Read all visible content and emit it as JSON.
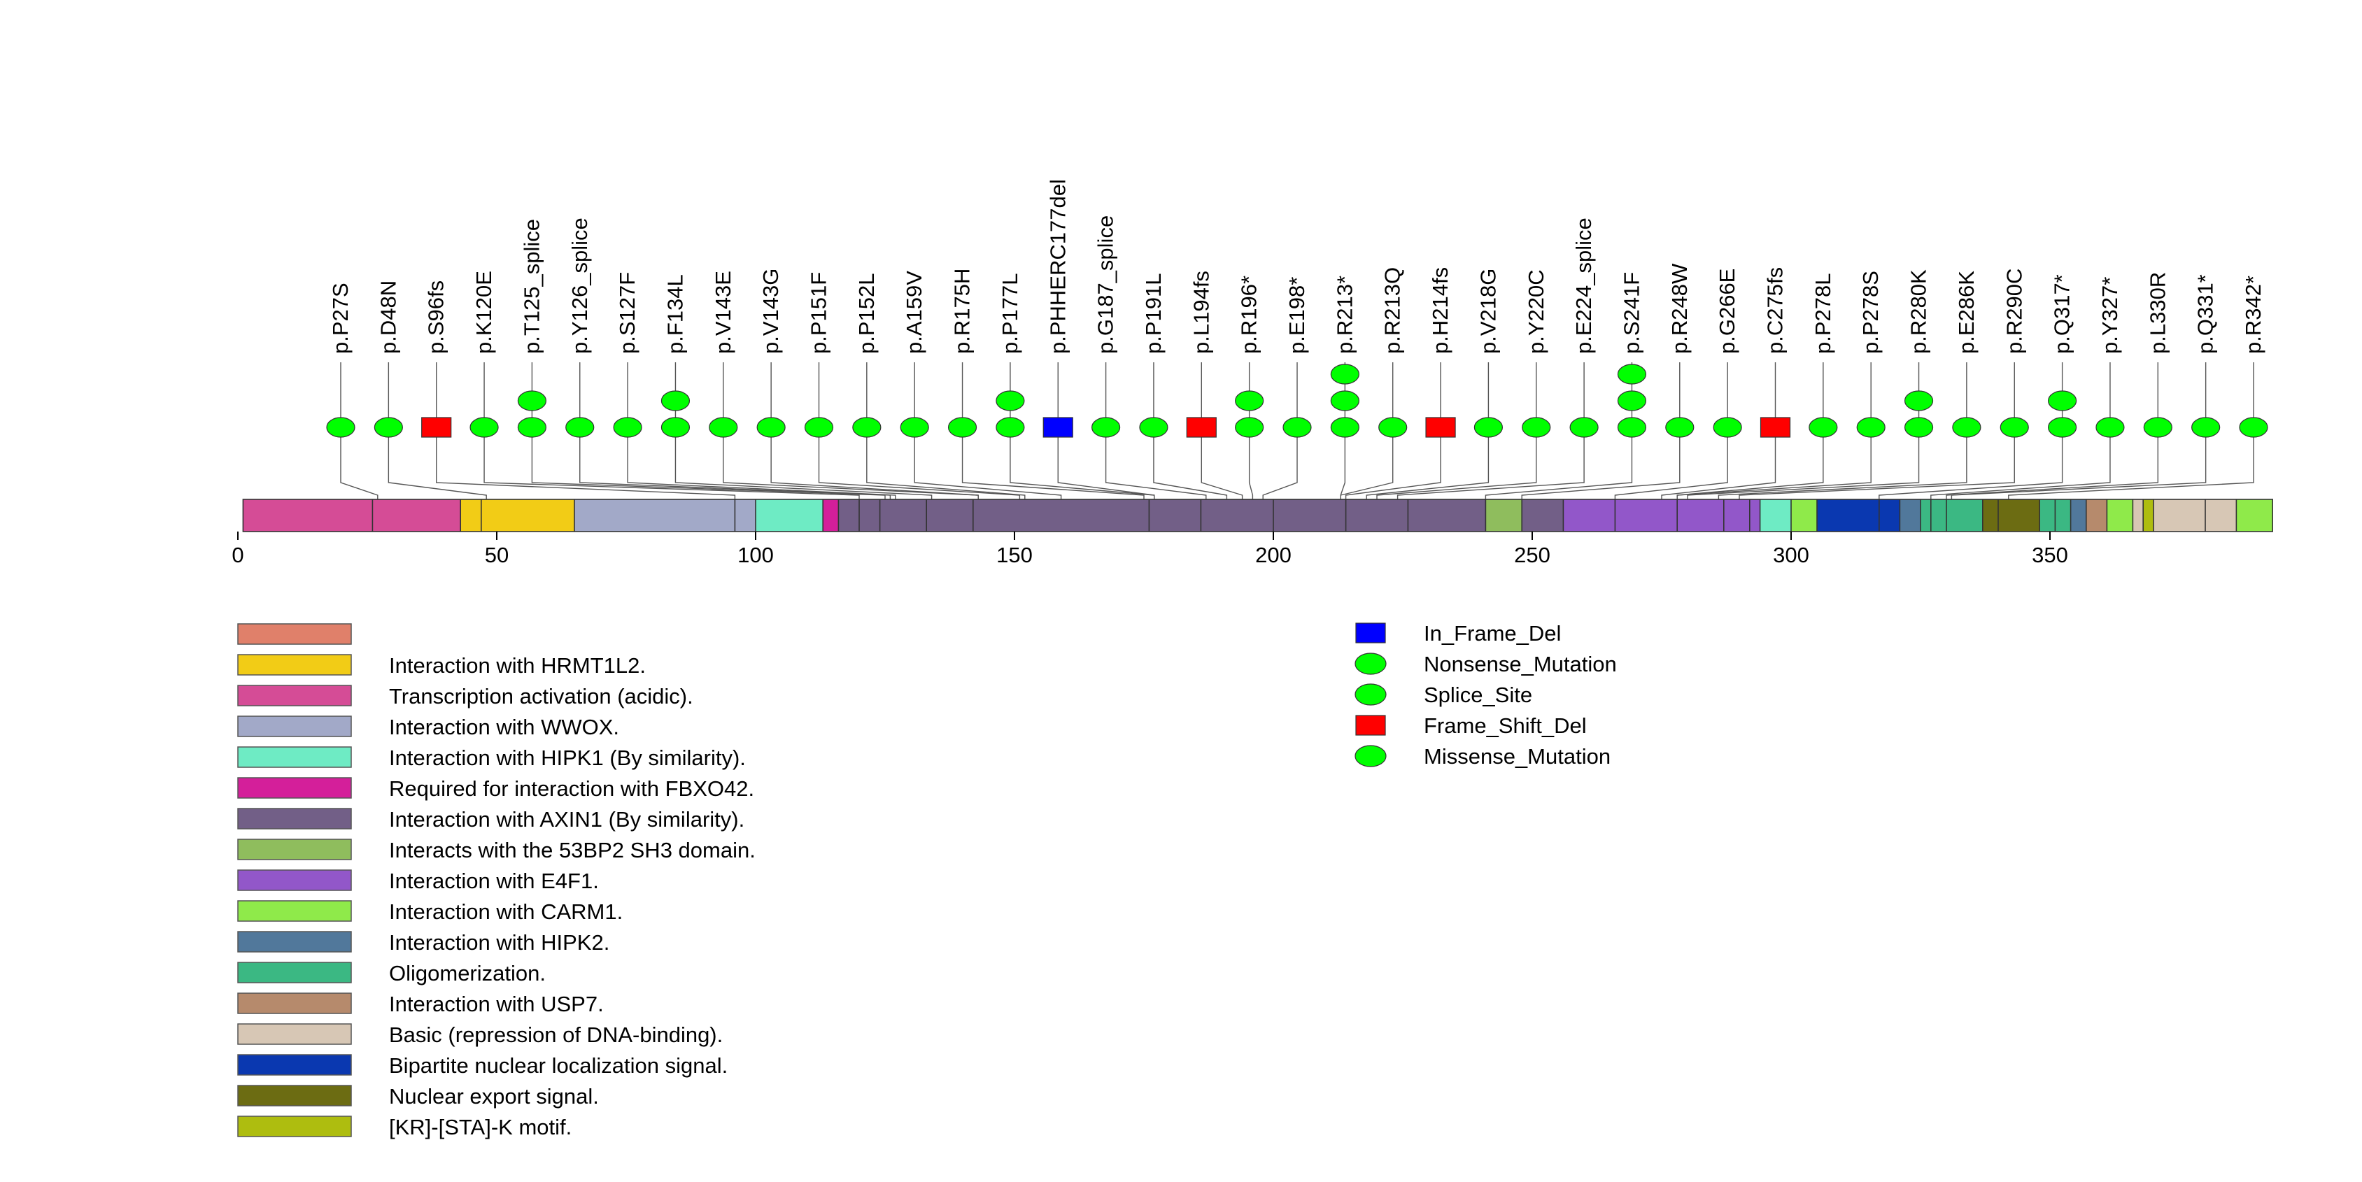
{
  "chart_data": {
    "type": "lollipop",
    "axis": {
      "min": 0,
      "max": 392,
      "ticks": [
        0,
        50,
        100,
        150,
        200,
        250,
        300,
        350
      ]
    },
    "domains": [
      {
        "start": 1,
        "end": 26,
        "color": "#d54c96",
        "feature": "Transcription activation (acidic)."
      },
      {
        "start": 26,
        "end": 43,
        "color": "#d54c96",
        "feature": "Transcription activation (acidic)."
      },
      {
        "start": 43,
        "end": 47,
        "color": "#f2cc16",
        "feature": "Interaction with HRMT1L2."
      },
      {
        "start": 47,
        "end": 65,
        "color": "#f2cc16",
        "feature": "Interaction with HRMT1L2."
      },
      {
        "start": 65,
        "end": 96,
        "color": "#a2a9c8",
        "feature": "Interaction with WWOX."
      },
      {
        "start": 96,
        "end": 100,
        "color": "#a2a9c8",
        "feature": "Interaction with WWOX."
      },
      {
        "start": 100,
        "end": 113,
        "color": "#6eebc4",
        "feature": "Interaction with HIPK1 (By similarity)."
      },
      {
        "start": 113,
        "end": 116,
        "color": "#d41f9a",
        "feature": "Required for interaction with FBXO42."
      },
      {
        "start": 116,
        "end": 120,
        "color": "#725f87",
        "feature": "Interaction with AXIN1 (By similarity)."
      },
      {
        "start": 120,
        "end": 124,
        "color": "#725f87",
        "feature": "Interaction with AXIN1 (By similarity)."
      },
      {
        "start": 124,
        "end": 133,
        "color": "#725f87",
        "feature": "Interaction with AXIN1 (By similarity)."
      },
      {
        "start": 133,
        "end": 142,
        "color": "#725f87",
        "feature": "Interaction with AXIN1 (By similarity)."
      },
      {
        "start": 142,
        "end": 176,
        "color": "#725f87",
        "feature": "Interaction with AXIN1 (By similarity)."
      },
      {
        "start": 176,
        "end": 186,
        "color": "#725f87",
        "feature": "Interaction with AXIN1 (By similarity)."
      },
      {
        "start": 186,
        "end": 200,
        "color": "#725f87",
        "feature": "Interaction with AXIN1 (By similarity)."
      },
      {
        "start": 200,
        "end": 214,
        "color": "#725f87",
        "feature": "Interaction with AXIN1 (By similarity)."
      },
      {
        "start": 214,
        "end": 226,
        "color": "#725f87",
        "feature": "Interaction with AXIN1 (By similarity)."
      },
      {
        "start": 226,
        "end": 241,
        "color": "#725f87",
        "feature": "Interaction with AXIN1 (By similarity)."
      },
      {
        "start": 241,
        "end": 248,
        "color": "#8fbd5d",
        "feature": "Interacts with the 53BP2 SH3 domain."
      },
      {
        "start": 248,
        "end": 256,
        "color": "#725f87",
        "feature": "Interaction with AXIN1 (By similarity)."
      },
      {
        "start": 256,
        "end": 266,
        "color": "#9257c9",
        "feature": "Interaction with E4F1."
      },
      {
        "start": 266,
        "end": 278,
        "color": "#9257c9",
        "feature": "Interaction with E4F1."
      },
      {
        "start": 278,
        "end": 287,
        "color": "#9257c9",
        "feature": "Interaction with E4F1."
      },
      {
        "start": 287,
        "end": 292,
        "color": "#9257c9",
        "feature": "Interaction with E4F1."
      },
      {
        "start": 292,
        "end": 294,
        "color": "#9257c9",
        "feature": "Interaction with E4F1."
      },
      {
        "start": 294,
        "end": 300,
        "color": "#6eebc4",
        "feature": "Interaction with HIPK1 (By similarity)."
      },
      {
        "start": 300,
        "end": 305,
        "color": "#8fea4a",
        "feature": "Interaction with CARM1."
      },
      {
        "start": 305,
        "end": 317,
        "color": "#0a38b0",
        "feature": "Bipartite nuclear localization signal."
      },
      {
        "start": 317,
        "end": 321,
        "color": "#0a38b0",
        "feature": "Bipartite nuclear localization signal."
      },
      {
        "start": 321,
        "end": 325,
        "color": "#51789b",
        "feature": "Interaction with HIPK2."
      },
      {
        "start": 325,
        "end": 327,
        "color": "#3bb883",
        "feature": "Oligomerization."
      },
      {
        "start": 327,
        "end": 330,
        "color": "#3bb883",
        "feature": "Oligomerization."
      },
      {
        "start": 330,
        "end": 337,
        "color": "#3bb883",
        "feature": "Oligomerization."
      },
      {
        "start": 337,
        "end": 340,
        "color": "#6c6c12",
        "feature": "Nuclear export signal."
      },
      {
        "start": 340,
        "end": 348,
        "color": "#6c6c12",
        "feature": "Nuclear export signal."
      },
      {
        "start": 348,
        "end": 351,
        "color": "#3bb883",
        "feature": "Oligomerization."
      },
      {
        "start": 351,
        "end": 354,
        "color": "#3bb883",
        "feature": "Oligomerization."
      },
      {
        "start": 354,
        "end": 357,
        "color": "#51789b",
        "feature": "Interaction with HIPK2."
      },
      {
        "start": 357,
        "end": 361,
        "color": "#b68a6c",
        "feature": "Interaction with USP7."
      },
      {
        "start": 361,
        "end": 366,
        "color": "#8fea4a",
        "feature": "Interaction with CARM1."
      },
      {
        "start": 366,
        "end": 368,
        "color": "#d7c7b5",
        "feature": "Basic (repression of DNA-binding)."
      },
      {
        "start": 368,
        "end": 370,
        "color": "#aebd0f",
        "feature": "[KR]-[STA]-K motif."
      },
      {
        "start": 370,
        "end": 380,
        "color": "#d7c7b5",
        "feature": "Basic (repression of DNA-binding)."
      },
      {
        "start": 380,
        "end": 386,
        "color": "#d7c7b5",
        "feature": "Basic (repression of DNA-binding)."
      },
      {
        "start": 386,
        "end": 393,
        "color": "#8fea4a",
        "feature": "Interaction with CARM1."
      }
    ],
    "domain_separators": [
      26,
      43,
      47,
      65,
      96,
      100,
      113,
      116,
      120,
      124,
      133,
      142,
      176,
      186,
      200,
      214,
      226,
      241,
      248,
      256,
      266,
      278,
      287,
      292,
      294,
      300,
      305,
      317,
      321,
      325,
      327,
      330,
      337,
      340,
      348,
      351,
      354,
      357,
      361,
      366,
      368,
      370,
      380,
      386
    ],
    "mutations": [
      {
        "label": "p.P27S",
        "position": 27,
        "markers": [
          "Missense_Mutation"
        ]
      },
      {
        "label": "p.D48N",
        "position": 48,
        "markers": [
          "Missense_Mutation"
        ]
      },
      {
        "label": "p.S96fs",
        "position": 96,
        "markers": [
          "Frame_Shift_Del"
        ]
      },
      {
        "label": "p.K120E",
        "position": 120,
        "markers": [
          "Missense_Mutation"
        ]
      },
      {
        "label": "p.T125_splice",
        "position": 125,
        "markers": [
          "Splice_Site",
          "Splice_Site"
        ]
      },
      {
        "label": "p.Y126_splice",
        "position": 126,
        "markers": [
          "Splice_Site"
        ]
      },
      {
        "label": "p.S127F",
        "position": 127,
        "markers": [
          "Missense_Mutation"
        ]
      },
      {
        "label": "p.F134L",
        "position": 134,
        "markers": [
          "Missense_Mutation",
          "Missense_Mutation"
        ]
      },
      {
        "label": "p.V143E",
        "position": 143,
        "markers": [
          "Missense_Mutation"
        ]
      },
      {
        "label": "p.V143G",
        "position": 143,
        "markers": [
          "Missense_Mutation"
        ]
      },
      {
        "label": "p.P151F",
        "position": 151,
        "markers": [
          "Missense_Mutation"
        ]
      },
      {
        "label": "p.P152L",
        "position": 152,
        "markers": [
          "Missense_Mutation"
        ]
      },
      {
        "label": "p.A159V",
        "position": 159,
        "markers": [
          "Missense_Mutation"
        ]
      },
      {
        "label": "p.R175H",
        "position": 175,
        "markers": [
          "Missense_Mutation"
        ]
      },
      {
        "label": "p.P177L",
        "position": 177,
        "markers": [
          "Missense_Mutation",
          "Missense_Mutation"
        ]
      },
      {
        "label": "p.PHHERC177del",
        "position": 177,
        "markers": [
          "In_Frame_Del"
        ]
      },
      {
        "label": "p.G187_splice",
        "position": 187,
        "markers": [
          "Splice_Site"
        ]
      },
      {
        "label": "p.P191L",
        "position": 191,
        "markers": [
          "Missense_Mutation"
        ]
      },
      {
        "label": "p.L194fs",
        "position": 194,
        "markers": [
          "Frame_Shift_Del"
        ]
      },
      {
        "label": "p.R196*",
        "position": 196,
        "markers": [
          "Nonsense_Mutation",
          "Nonsense_Mutation"
        ]
      },
      {
        "label": "p.E198*",
        "position": 198,
        "markers": [
          "Nonsense_Mutation"
        ]
      },
      {
        "label": "p.R213*",
        "position": 213,
        "markers": [
          "Nonsense_Mutation",
          "Nonsense_Mutation",
          "Nonsense_Mutation"
        ]
      },
      {
        "label": "p.R213Q",
        "position": 213,
        "markers": [
          "Missense_Mutation"
        ]
      },
      {
        "label": "p.H214fs",
        "position": 214,
        "markers": [
          "Frame_Shift_Del"
        ]
      },
      {
        "label": "p.V218G",
        "position": 218,
        "markers": [
          "Missense_Mutation"
        ]
      },
      {
        "label": "p.Y220C",
        "position": 220,
        "markers": [
          "Missense_Mutation"
        ]
      },
      {
        "label": "p.E224_splice",
        "position": 224,
        "markers": [
          "Splice_Site"
        ]
      },
      {
        "label": "p.S241F",
        "position": 241,
        "markers": [
          "Missense_Mutation",
          "Missense_Mutation",
          "Missense_Mutation"
        ]
      },
      {
        "label": "p.R248W",
        "position": 248,
        "markers": [
          "Missense_Mutation"
        ]
      },
      {
        "label": "p.G266E",
        "position": 266,
        "markers": [
          "Missense_Mutation"
        ]
      },
      {
        "label": "p.C275fs",
        "position": 275,
        "markers": [
          "Frame_Shift_Del"
        ]
      },
      {
        "label": "p.P278L",
        "position": 278,
        "markers": [
          "Missense_Mutation"
        ]
      },
      {
        "label": "p.P278S",
        "position": 278,
        "markers": [
          "Missense_Mutation"
        ]
      },
      {
        "label": "p.R280K",
        "position": 280,
        "markers": [
          "Missense_Mutation",
          "Missense_Mutation"
        ]
      },
      {
        "label": "p.E286K",
        "position": 286,
        "markers": [
          "Missense_Mutation"
        ]
      },
      {
        "label": "p.R290C",
        "position": 290,
        "markers": [
          "Missense_Mutation"
        ]
      },
      {
        "label": "p.Q317*",
        "position": 317,
        "markers": [
          "Nonsense_Mutation",
          "Nonsense_Mutation"
        ]
      },
      {
        "label": "p.Y327*",
        "position": 327,
        "markers": [
          "Nonsense_Mutation"
        ]
      },
      {
        "label": "p.L330R",
        "position": 330,
        "markers": [
          "Missense_Mutation"
        ]
      },
      {
        "label": "p.Q331*",
        "position": 331,
        "markers": [
          "Nonsense_Mutation"
        ]
      },
      {
        "label": "p.R342*",
        "position": 342,
        "markers": [
          "Nonsense_Mutation"
        ]
      }
    ],
    "feature_legend": [
      {
        "label": "",
        "color": "#e0806a"
      },
      {
        "label": "Interaction with HRMT1L2.",
        "color": "#f2cc16"
      },
      {
        "label": "Transcription activation (acidic).",
        "color": "#d54c96"
      },
      {
        "label": "Interaction with WWOX.",
        "color": "#a2a9c8"
      },
      {
        "label": "Interaction with HIPK1 (By similarity).",
        "color": "#6eebc4"
      },
      {
        "label": "Required for interaction with FBXO42.",
        "color": "#d41f9a"
      },
      {
        "label": "Interaction with AXIN1 (By similarity).",
        "color": "#725f87"
      },
      {
        "label": "Interacts with the 53BP2 SH3 domain.",
        "color": "#8fbd5d"
      },
      {
        "label": "Interaction with E4F1.",
        "color": "#9257c9"
      },
      {
        "label": "Interaction with CARM1.",
        "color": "#8fea4a"
      },
      {
        "label": "Interaction with HIPK2.",
        "color": "#51789b"
      },
      {
        "label": "Oligomerization.",
        "color": "#3bb883"
      },
      {
        "label": "Interaction with USP7.",
        "color": "#b68a6c"
      },
      {
        "label": "Basic (repression of DNA-binding).",
        "color": "#d7c7b5"
      },
      {
        "label": "Bipartite nuclear localization signal.",
        "color": "#0a38b0"
      },
      {
        "label": "Nuclear export signal.",
        "color": "#6c6c12"
      },
      {
        "label": "[KR]-[STA]-K motif.",
        "color": "#aebd0f"
      }
    ],
    "mutation_legend": [
      {
        "label": "In_Frame_Del",
        "shape": "square",
        "color": "#0000ff"
      },
      {
        "label": "Nonsense_Mutation",
        "shape": "ellipse",
        "color": "#00ff00"
      },
      {
        "label": "Splice_Site",
        "shape": "ellipse",
        "color": "#00ff00"
      },
      {
        "label": "Frame_Shift_Del",
        "shape": "square",
        "color": "#ff0000"
      },
      {
        "label": "Missense_Mutation",
        "shape": "ellipse",
        "color": "#00ff00"
      }
    ]
  }
}
